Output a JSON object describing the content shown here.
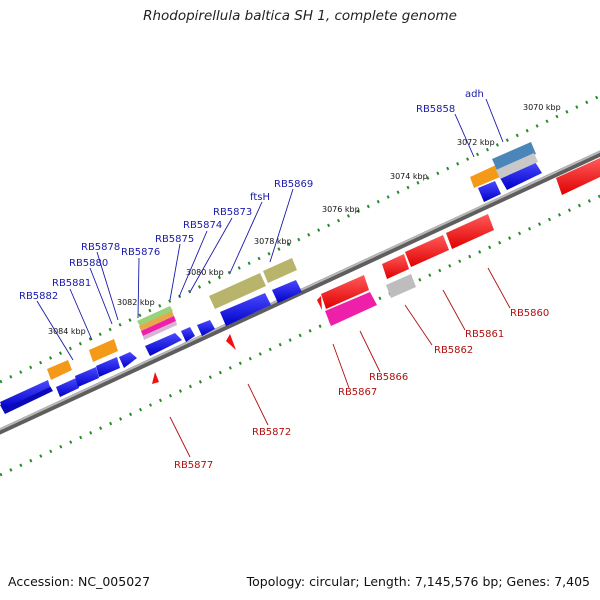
{
  "title": "Rhodopirellula baltica SH 1, complete genome",
  "footer": {
    "accession": "Accession: NC_005027",
    "summary": "Topology: circular; Length: 7,145,576 bp; Genes: 7,405"
  },
  "colors": {
    "backbone": "#7f7f7f",
    "ticks": "#2a8a2a",
    "forward_label": "#1a1aaa",
    "reverse_label": "#b01010",
    "blue_gene": "#1212e0",
    "red_gene": "#f20f0f",
    "orange_gene": "#f59a18",
    "khaki_gene": "#b9b46b",
    "magenta_gene": "#ee1fa8",
    "grey_gene": "#bdbdbd",
    "steel_gene": "#4a86ba"
  },
  "kbp_labels": [
    "3070 kbp",
    "3072 kbp",
    "3074 kbp",
    "3076 kbp",
    "3078 kbp",
    "3080 kbp",
    "3082 kbp",
    "3084 kbp"
  ],
  "forward_labels": [
    "adh",
    "RB5858",
    "RB5869",
    "ftsH",
    "RB5873",
    "RB5874",
    "RB5875",
    "RB5876",
    "RB5878",
    "RB5880",
    "RB5881",
    "RB5882"
  ],
  "reverse_labels": [
    "RB5860",
    "RB5861",
    "RB5862",
    "RB5866",
    "RB5867",
    "RB5872",
    "RB5877"
  ]
}
